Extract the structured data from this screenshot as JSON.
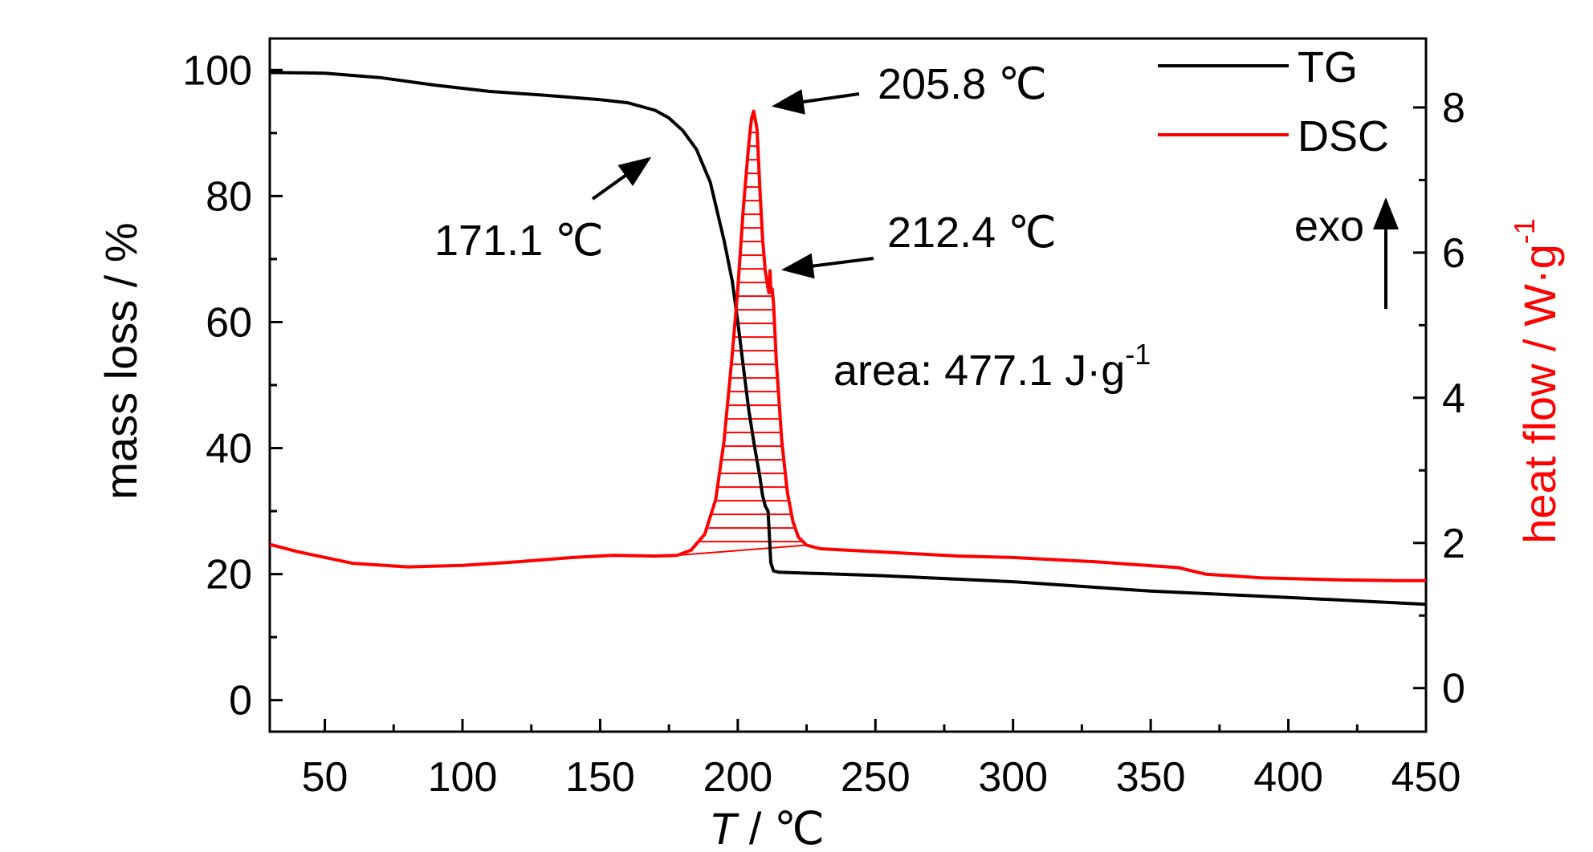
{
  "chart_data": {
    "type": "line",
    "xlabel_italic": "T",
    "xlabel_rest": " / ℃",
    "ylabel_left": "mass loss / %",
    "ylabel_right_main": "heat flow / W·g",
    "ylabel_right_sup": "-1",
    "xlim": [
      30,
      450
    ],
    "ylim_left": [
      -5,
      105
    ],
    "ylim_right": [
      -0.6,
      8.95
    ],
    "x_ticks": [
      50,
      100,
      150,
      200,
      250,
      300,
      350,
      400,
      450
    ],
    "y_left_ticks": [
      0,
      20,
      40,
      60,
      80,
      100
    ],
    "y_right_ticks": [
      0,
      2,
      4,
      6,
      8
    ],
    "legend_position": "top-right",
    "series": [
      {
        "name": "TG",
        "axis": "left",
        "color": "#000000",
        "points": [
          [
            30,
            99.6
          ],
          [
            50,
            99.5
          ],
          [
            70,
            98.8
          ],
          [
            90,
            97.6
          ],
          [
            110,
            96.6
          ],
          [
            130,
            96
          ],
          [
            150,
            95.3
          ],
          [
            160,
            94.8
          ],
          [
            170,
            93.6
          ],
          [
            175,
            92.4
          ],
          [
            180,
            90.4
          ],
          [
            185,
            87.4
          ],
          [
            190,
            82.2
          ],
          [
            195,
            73
          ],
          [
            198,
            66.5
          ],
          [
            200,
            60
          ],
          [
            202,
            53
          ],
          [
            204,
            46
          ],
          [
            206,
            40.5
          ],
          [
            208,
            35.5
          ],
          [
            209,
            32.5
          ],
          [
            210,
            30.8
          ],
          [
            211,
            30
          ],
          [
            212,
            21.8
          ],
          [
            213,
            20.5
          ],
          [
            215,
            20.3
          ],
          [
            250,
            19.8
          ],
          [
            300,
            18.8
          ],
          [
            350,
            17.3
          ],
          [
            400,
            16.3
          ],
          [
            450,
            15.2
          ]
        ]
      },
      {
        "name": "DSC",
        "axis": "right",
        "color": "#ff0000",
        "points": [
          [
            30,
            1.98
          ],
          [
            40,
            1.88
          ],
          [
            60,
            1.72
          ],
          [
            80,
            1.67
          ],
          [
            100,
            1.69
          ],
          [
            120,
            1.74
          ],
          [
            140,
            1.8
          ],
          [
            155,
            1.83
          ],
          [
            170,
            1.82
          ],
          [
            178,
            1.83
          ],
          [
            183,
            1.9
          ],
          [
            188,
            2.12
          ],
          [
            192,
            2.6
          ],
          [
            195,
            3.4
          ],
          [
            198,
            4.6
          ],
          [
            200,
            5.5
          ],
          [
            202,
            6.6
          ],
          [
            204,
            7.5
          ],
          [
            205,
            7.85
          ],
          [
            205.8,
            7.95
          ],
          [
            207,
            7.7
          ],
          [
            208,
            6.9
          ],
          [
            209,
            6.2
          ],
          [
            210,
            5.75
          ],
          [
            210.8,
            5.55
          ],
          [
            211.3,
            5.45
          ],
          [
            211.7,
            5.75
          ],
          [
            212.1,
            5.45
          ],
          [
            212.5,
            5.5
          ],
          [
            213,
            5.3
          ],
          [
            214,
            4.5
          ],
          [
            216,
            3.4
          ],
          [
            218,
            2.7
          ],
          [
            220,
            2.3
          ],
          [
            222,
            2.08
          ],
          [
            225,
            1.97
          ],
          [
            230,
            1.92
          ],
          [
            250,
            1.88
          ],
          [
            280,
            1.82
          ],
          [
            300,
            1.8
          ],
          [
            330,
            1.74
          ],
          [
            360,
            1.66
          ],
          [
            370,
            1.57
          ],
          [
            390,
            1.52
          ],
          [
            420,
            1.49
          ],
          [
            440,
            1.48
          ],
          [
            450,
            1.48
          ]
        ]
      }
    ],
    "shaded_region": {
      "x_start": 178,
      "x_end": 225,
      "baseline_start": 1.83,
      "baseline_end": 1.97,
      "hatch_color": "#ff0000"
    },
    "annotations": [
      {
        "text": "205.8 ℃",
        "point_x": 205.8
      },
      {
        "text": "171.1 ℃",
        "point_x": 171.1
      },
      {
        "text": "212.4 ℃",
        "point_x": 212.4
      },
      {
        "text_main": "area: 477.1 J·g",
        "text_sup": "-1"
      },
      {
        "text": "exo"
      }
    ]
  }
}
